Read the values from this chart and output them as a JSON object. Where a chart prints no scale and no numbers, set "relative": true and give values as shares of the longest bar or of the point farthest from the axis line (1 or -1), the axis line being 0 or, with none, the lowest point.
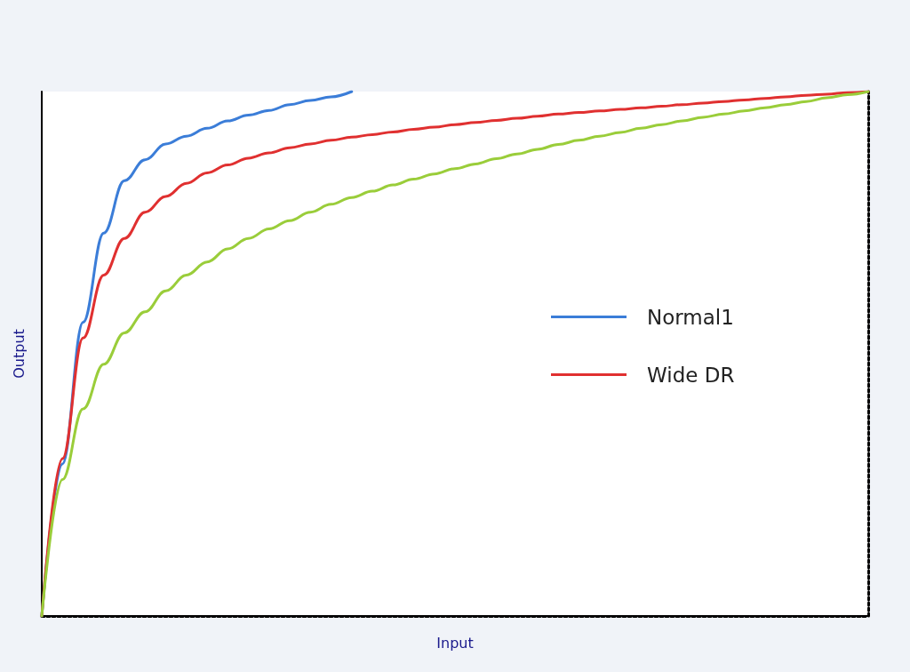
{
  "chart_data": {
    "type": "line",
    "xlabel": "Input",
    "ylabel": "Output",
    "relative": true,
    "legend": "right",
    "grid": false,
    "marker": "none",
    "line_style": "solid",
    "categories": [
      null,
      null,
      null,
      null,
      null,
      null,
      null,
      null,
      null,
      null,
      null,
      null,
      null,
      null,
      null,
      null,
      null,
      null,
      null,
      null,
      null,
      null,
      null,
      null,
      null,
      null,
      null,
      null,
      null,
      null,
      null,
      null,
      null,
      null,
      null,
      null,
      null,
      null,
      null,
      null,
      null
    ],
    "series": [
      {
        "name": "Normal1",
        "color": "#3b7dd8",
        "values": [
          0,
          0.29,
          0.56,
          0.73,
          0.83,
          0.87,
          0.9,
          0.915,
          0.93,
          0.944,
          0.955,
          0.964,
          0.975,
          0.983,
          0.99,
          1,
          null,
          null,
          null,
          null,
          null,
          null,
          null,
          null,
          null,
          null,
          null,
          null,
          null,
          null,
          null,
          null,
          null,
          null,
          null,
          null,
          null,
          null,
          null,
          null,
          null
        ]
      },
      {
        "name": "Wide DR",
        "color": "#e03030",
        "values": [
          0,
          0.3,
          0.53,
          0.65,
          0.72,
          0.77,
          0.8,
          0.825,
          0.845,
          0.86,
          0.873,
          0.883,
          0.893,
          0.9,
          0.907,
          0.913,
          0.918,
          0.923,
          0.928,
          0.932,
          0.937,
          0.941,
          0.945,
          0.949,
          0.953,
          0.957,
          0.96,
          0.963,
          0.966,
          0.969,
          0.972,
          0.975,
          0.978,
          0.981,
          0.984,
          0.987,
          0.99,
          0.993,
          0.995,
          0.998,
          1
        ]
      },
      {
        "color": "#9acd3a",
        "values": [
          0,
          0.26,
          0.395,
          0.48,
          0.54,
          0.58,
          0.62,
          0.65,
          0.675,
          0.7,
          0.72,
          0.738,
          0.754,
          0.77,
          0.785,
          0.798,
          0.81,
          0.822,
          0.833,
          0.843,
          0.853,
          0.862,
          0.872,
          0.881,
          0.89,
          0.899,
          0.907,
          0.915,
          0.922,
          0.93,
          0.937,
          0.944,
          0.951,
          0.957,
          0.963,
          0.969,
          0.975,
          0.981,
          0.988,
          0.994,
          1
        ]
      }
    ]
  }
}
